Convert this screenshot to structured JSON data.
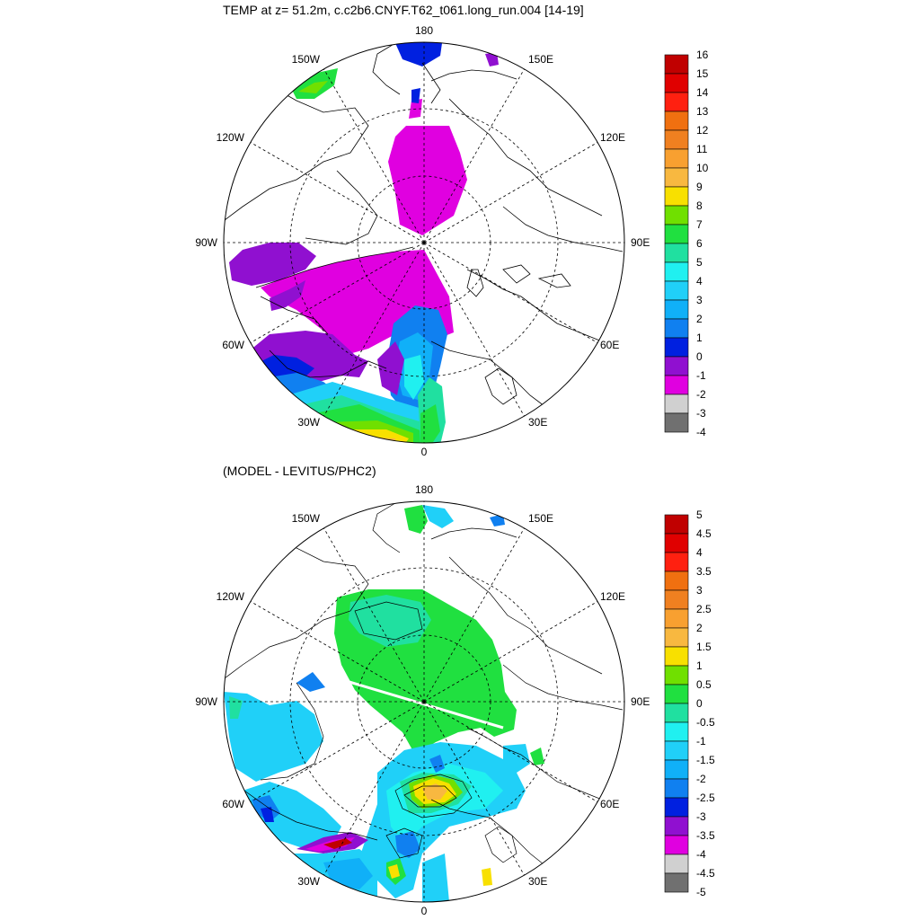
{
  "panels": [
    {
      "title": "TEMP at z=  51.2m, c.c2b6.CNYF.T62_t061.long_run.004 [14-19]",
      "longitude_labels": [
        "180",
        "150E",
        "120E",
        "90E",
        "60E",
        "30E",
        "0",
        "30W",
        "60W",
        "90W",
        "120W",
        "150W"
      ],
      "colorbar": {
        "labels": [
          "16",
          "15",
          "14",
          "13",
          "12",
          "11",
          "10",
          "9",
          "8",
          "7",
          "6",
          "5",
          "4",
          "3",
          "2",
          "1",
          "0",
          "-1",
          "-2",
          "-3",
          "-4"
        ],
        "colors": [
          "#c00000",
          "#e00000",
          "#ff2010",
          "#f07010",
          "#f08020",
          "#f8a030",
          "#f8b840",
          "#f8e000",
          "#70e000",
          "#20e040",
          "#20e0a0",
          "#20f0f0",
          "#20d0f8",
          "#10b0f8",
          "#1080f0",
          "#0020e0",
          "#9010d0",
          "#e000e0",
          "#d0d0d0",
          "#707070"
        ]
      }
    },
    {
      "title": "(MODEL - LEVITUS/PHC2)",
      "longitude_labels": [
        "180",
        "150E",
        "120E",
        "90E",
        "60E",
        "30E",
        "0",
        "30W",
        "60W",
        "90W",
        "120W",
        "150W"
      ],
      "colorbar": {
        "labels": [
          "5",
          "4.5",
          "4",
          "3.5",
          "3",
          "2.5",
          "2",
          "1.5",
          "1",
          "0.5",
          "0",
          "-0.5",
          "-1",
          "-1.5",
          "-2",
          "-2.5",
          "-3",
          "-3.5",
          "-4",
          "-4.5",
          "-5"
        ],
        "colors": [
          "#c00000",
          "#e00000",
          "#ff2010",
          "#f07010",
          "#f08020",
          "#f8a030",
          "#f8b840",
          "#f8e000",
          "#70e000",
          "#20e040",
          "#20e0a0",
          "#20f0f0",
          "#20d0f8",
          "#10b0f8",
          "#1080f0",
          "#0020e0",
          "#9010d0",
          "#e000e0",
          "#d0d0d0",
          "#707070"
        ]
      }
    }
  ]
}
